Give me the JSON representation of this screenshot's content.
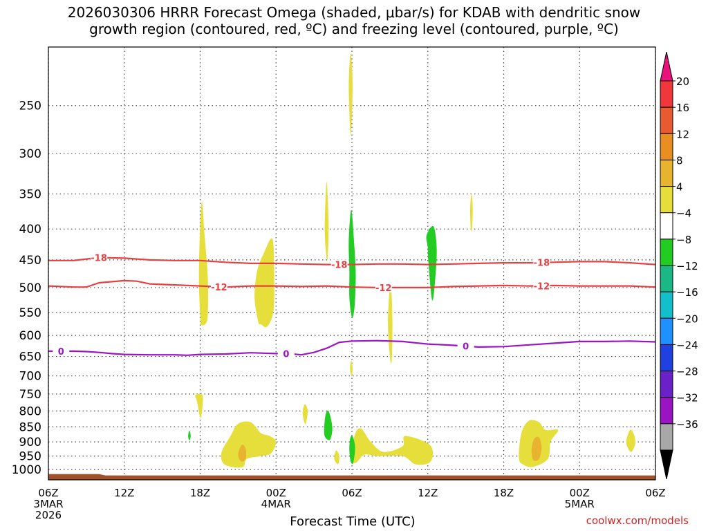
{
  "chart_data": {
    "type": "heatmap",
    "title_line1": "2026030306 HRRR Forecast Omega (shaded, μbar/s) for KDAB with dendritic snow",
    "title_line2": "growth region (contoured, red, ºC) and freezing level (contoured, purple, ºC)",
    "xlabel": "Forecast Time (UTC)",
    "credit": "coolwx.com/models",
    "x_range_hours": [
      0,
      48
    ],
    "x_ticks": [
      {
        "h": 0,
        "lines": [
          "06Z",
          "3MAR",
          "2026"
        ]
      },
      {
        "h": 6,
        "lines": [
          "12Z"
        ]
      },
      {
        "h": 12,
        "lines": [
          "18Z"
        ]
      },
      {
        "h": 18,
        "lines": [
          "00Z",
          "4MAR"
        ]
      },
      {
        "h": 24,
        "lines": [
          "06Z"
        ]
      },
      {
        "h": 30,
        "lines": [
          "12Z"
        ]
      },
      {
        "h": 36,
        "lines": [
          "18Z"
        ]
      },
      {
        "h": 42,
        "lines": [
          "00Z",
          "5MAR"
        ]
      },
      {
        "h": 48,
        "lines": [
          "06Z"
        ]
      }
    ],
    "y_axis": "pressure (mb), log scale",
    "y_range_mb": [
      1040,
      200
    ],
    "y_ticks": [
      250,
      300,
      350,
      400,
      450,
      500,
      550,
      600,
      650,
      700,
      750,
      800,
      850,
      900,
      950,
      1000
    ],
    "colorbar": {
      "labels": [
        "20",
        "16",
        "12",
        "8",
        "4",
        "−4",
        "−8",
        "−12",
        "−16",
        "−20",
        "−24",
        "−28",
        "−32",
        "−36"
      ],
      "colors": [
        "#e8127a",
        "#f0383c",
        "#e85a30",
        "#e88e22",
        "#e8b430",
        "#e6de3a",
        "#ffffff",
        "#22cc22",
        "#1ab884",
        "#14bfcc",
        "#1e90ff",
        "#2040e0",
        "#6a22c8",
        "#9a14c4",
        "#a8a8a8",
        "#000000"
      ]
    },
    "contours": [
      {
        "label": "-18",
        "color": "#e84040",
        "points": [
          [
            0,
            451
          ],
          [
            2,
            451
          ],
          [
            4,
            446
          ],
          [
            6,
            447
          ],
          [
            8,
            450
          ],
          [
            10,
            451
          ],
          [
            12,
            451
          ],
          [
            14,
            454
          ],
          [
            16,
            456
          ],
          [
            18,
            456
          ],
          [
            20,
            457
          ],
          [
            22,
            458
          ],
          [
            24,
            458
          ],
          [
            26,
            457
          ],
          [
            28,
            457
          ],
          [
            30,
            458
          ],
          [
            32,
            457
          ],
          [
            34,
            456
          ],
          [
            36,
            455
          ],
          [
            38,
            455
          ],
          [
            40,
            454
          ],
          [
            42,
            453
          ],
          [
            44,
            453
          ],
          [
            46,
            455
          ],
          [
            48,
            458
          ]
        ],
        "label_at_h": [
          4.0,
          23.0,
          39.0
        ]
      },
      {
        "label": "-12",
        "color": "#e84040",
        "points": [
          [
            0,
            497
          ],
          [
            2,
            499
          ],
          [
            3,
            499
          ],
          [
            4,
            491
          ],
          [
            6,
            487
          ],
          [
            7,
            488
          ],
          [
            8,
            493
          ],
          [
            10,
            495
          ],
          [
            12,
            497
          ],
          [
            14,
            499
          ],
          [
            16,
            497
          ],
          [
            18,
            497
          ],
          [
            20,
            498
          ],
          [
            22,
            497
          ],
          [
            24,
            499
          ],
          [
            26,
            500
          ],
          [
            28,
            500
          ],
          [
            30,
            500
          ],
          [
            32,
            498
          ],
          [
            34,
            497
          ],
          [
            36,
            496
          ],
          [
            38,
            497
          ],
          [
            40,
            496
          ],
          [
            42,
            497
          ],
          [
            44,
            497
          ],
          [
            46,
            497
          ],
          [
            48,
            499
          ]
        ],
        "label_at_h": [
          13.5,
          26.5,
          39.0
        ]
      },
      {
        "label": "0",
        "color": "#9a14c4",
        "points": [
          [
            0,
            637
          ],
          [
            2,
            637
          ],
          [
            3,
            638
          ],
          [
            4,
            640
          ],
          [
            5,
            643
          ],
          [
            6,
            645
          ],
          [
            8,
            646
          ],
          [
            10,
            646
          ],
          [
            11,
            647
          ],
          [
            12,
            645
          ],
          [
            14,
            644
          ],
          [
            16,
            641
          ],
          [
            18,
            643
          ],
          [
            19,
            643
          ],
          [
            20,
            646
          ],
          [
            21,
            640
          ],
          [
            22,
            630
          ],
          [
            23,
            616
          ],
          [
            24,
            613
          ],
          [
            26,
            612
          ],
          [
            28,
            614
          ],
          [
            29,
            617
          ],
          [
            30,
            620
          ],
          [
            32,
            623
          ],
          [
            34,
            627
          ],
          [
            36,
            626
          ],
          [
            38,
            622
          ],
          [
            40,
            618
          ],
          [
            42,
            614
          ],
          [
            44,
            614
          ],
          [
            46,
            613
          ],
          [
            48,
            615
          ]
        ],
        "label_at_h": [
          1.0,
          18.8,
          33.0
        ]
      }
    ],
    "omega_blobs": [
      {
        "fill": "#e6de3a",
        "points": [
          [
            23.9,
            280
          ],
          [
            23.75,
            232
          ],
          [
            23.9,
            205
          ],
          [
            24.05,
            232
          ]
        ]
      },
      {
        "fill": "#e6de3a",
        "points": [
          [
            12.0,
            555
          ],
          [
            11.9,
            480
          ],
          [
            12.0,
            396
          ],
          [
            12.15,
            360
          ],
          [
            12.35,
            410
          ],
          [
            12.6,
            480
          ],
          [
            12.6,
            555
          ],
          [
            12.4,
            575
          ],
          [
            12.05,
            575
          ]
        ]
      },
      {
        "fill": "#e6de3a",
        "points": [
          [
            16.6,
            570
          ],
          [
            16.3,
            520
          ],
          [
            16.5,
            470
          ],
          [
            17.0,
            440
          ],
          [
            17.7,
            415
          ],
          [
            17.85,
            470
          ],
          [
            17.8,
            545
          ],
          [
            17.3,
            580
          ],
          [
            16.8,
            575
          ]
        ]
      },
      {
        "fill": "#e6de3a",
        "points": [
          [
            22.0,
            447
          ],
          [
            21.85,
            400
          ],
          [
            22.0,
            334
          ],
          [
            22.15,
            390
          ],
          [
            22.1,
            440
          ]
        ]
      },
      {
        "fill": "#e6de3a",
        "points": [
          [
            33.4,
            400
          ],
          [
            33.35,
            370
          ],
          [
            33.45,
            350
          ],
          [
            33.55,
            370
          ],
          [
            33.5,
            400
          ]
        ]
      },
      {
        "fill": "#e6de3a",
        "points": [
          [
            27.0,
            650
          ],
          [
            26.85,
            570
          ],
          [
            27.05,
            490
          ],
          [
            27.2,
            560
          ],
          [
            27.15,
            660
          ]
        ]
      },
      {
        "fill": "#e6de3a",
        "points": [
          [
            23.95,
            700
          ],
          [
            23.85,
            680
          ],
          [
            23.95,
            660
          ],
          [
            24.05,
            680
          ],
          [
            24.0,
            700
          ]
        ]
      },
      {
        "fill": "#e6de3a",
        "points": [
          [
            11.7,
            765
          ],
          [
            11.6,
            755
          ],
          [
            11.8,
            750
          ],
          [
            12.2,
            755
          ],
          [
            12.15,
            800
          ],
          [
            12.0,
            820
          ],
          [
            11.8,
            780
          ]
        ]
      },
      {
        "fill": "#e6de3a",
        "points": [
          [
            20.2,
            830
          ],
          [
            20.1,
            800
          ],
          [
            20.3,
            780
          ],
          [
            20.5,
            800
          ],
          [
            20.35,
            840
          ]
        ]
      },
      {
        "fill": "#e6de3a",
        "points": [
          [
            22.6,
            960
          ],
          [
            22.75,
            930
          ],
          [
            23.0,
            950
          ],
          [
            22.9,
            980
          ]
        ]
      },
      {
        "fill": "#e6de3a",
        "points": [
          [
            24.0,
            960
          ],
          [
            24.2,
            880
          ],
          [
            24.7,
            855
          ],
          [
            25.5,
            900
          ],
          [
            26.5,
            935
          ],
          [
            28.0,
            915
          ],
          [
            28.2,
            880
          ],
          [
            30.0,
            905
          ],
          [
            30.4,
            940
          ],
          [
            30.1,
            975
          ],
          [
            29.0,
            980
          ],
          [
            28.0,
            950
          ],
          [
            26.0,
            950
          ],
          [
            25.0,
            945
          ],
          [
            24.3,
            975
          ]
        ]
      },
      {
        "fill": "#e6de3a",
        "points": [
          [
            13.7,
            935
          ],
          [
            14.4,
            880
          ],
          [
            15.0,
            840
          ],
          [
            16.0,
            835
          ],
          [
            16.8,
            870
          ],
          [
            17.5,
            880
          ],
          [
            18.0,
            900
          ],
          [
            17.6,
            940
          ],
          [
            16.8,
            950
          ],
          [
            15.7,
            960
          ],
          [
            15.4,
            990
          ],
          [
            14.5,
            990
          ],
          [
            13.8,
            975
          ]
        ]
      },
      {
        "fill": "#e6de3a",
        "points": [
          [
            37.2,
            955
          ],
          [
            37.4,
            870
          ],
          [
            38.0,
            830
          ],
          [
            38.8,
            835
          ],
          [
            39.3,
            860
          ],
          [
            40.3,
            860
          ],
          [
            39.7,
            900
          ],
          [
            39.5,
            960
          ],
          [
            38.3,
            990
          ],
          [
            37.5,
            980
          ]
        ]
      },
      {
        "fill": "#e6de3a",
        "points": [
          [
            45.7,
            895
          ],
          [
            46.0,
            860
          ],
          [
            46.3,
            875
          ],
          [
            46.4,
            905
          ],
          [
            46.1,
            935
          ],
          [
            45.8,
            920
          ]
        ]
      },
      {
        "fill": "#e8b430",
        "points": [
          [
            15.0,
            945
          ],
          [
            15.3,
            910
          ],
          [
            15.6,
            925
          ],
          [
            15.6,
            960
          ],
          [
            15.25,
            970
          ]
        ]
      },
      {
        "fill": "#e8b430",
        "points": [
          [
            38.2,
            930
          ],
          [
            38.4,
            890
          ],
          [
            38.8,
            885
          ],
          [
            39.0,
            920
          ],
          [
            38.8,
            960
          ],
          [
            38.35,
            965
          ]
        ]
      },
      {
        "fill": "#22cc22",
        "points": [
          [
            23.8,
            470
          ],
          [
            23.75,
            420
          ],
          [
            23.95,
            372
          ],
          [
            24.2,
            430
          ],
          [
            24.3,
            480
          ],
          [
            24.2,
            540
          ],
          [
            24.0,
            560
          ],
          [
            23.8,
            520
          ]
        ]
      },
      {
        "fill": "#22cc22",
        "points": [
          [
            30.0,
            430
          ],
          [
            29.9,
            410
          ],
          [
            30.45,
            396
          ],
          [
            30.7,
            430
          ],
          [
            30.6,
            480
          ],
          [
            30.35,
            525
          ],
          [
            30.05,
            455
          ]
        ]
      },
      {
        "fill": "#22cc22",
        "points": [
          [
            21.8,
            870
          ],
          [
            21.9,
            815
          ],
          [
            22.15,
            800
          ],
          [
            22.45,
            850
          ],
          [
            22.3,
            890
          ],
          [
            22.0,
            890
          ]
        ]
      },
      {
        "fill": "#22cc22",
        "points": [
          [
            23.8,
            930
          ],
          [
            23.85,
            890
          ],
          [
            24.05,
            880
          ],
          [
            24.25,
            920
          ],
          [
            24.1,
            975
          ],
          [
            23.9,
            970
          ]
        ]
      },
      {
        "fill": "#22cc22",
        "points": [
          [
            11.05,
            880
          ],
          [
            11.15,
            862
          ],
          [
            11.25,
            880
          ],
          [
            11.15,
            895
          ]
        ]
      }
    ],
    "ground": {
      "color": "#a0522d",
      "from_mb": 1020
    }
  }
}
